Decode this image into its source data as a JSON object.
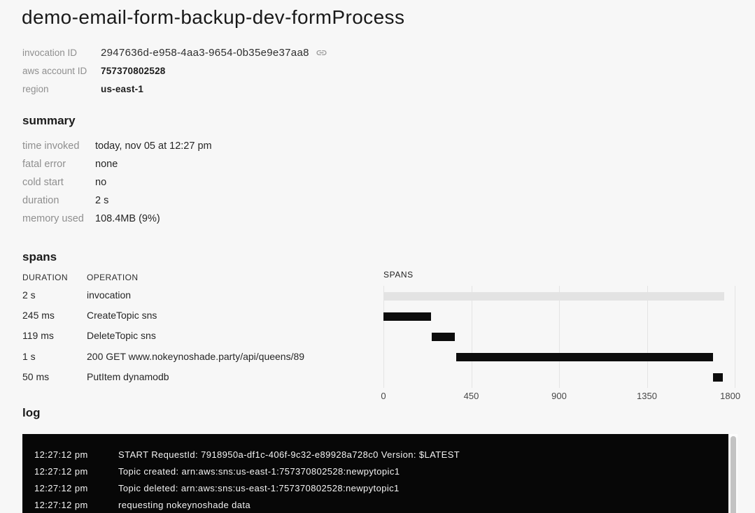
{
  "page": {
    "title": "demo-email-form-backup-dev-formProcess"
  },
  "meta": {
    "invocation_id": {
      "label": "invocation ID",
      "value": "2947636d-e958-4aa3-9654-0b35e9e37aa8"
    },
    "aws_account_id": {
      "label": "aws account ID",
      "value": "757370802528"
    },
    "region": {
      "label": "region",
      "value": "us-east-1"
    }
  },
  "summary": {
    "heading": "summary",
    "rows": [
      {
        "label": "time invoked",
        "value": "today, nov 05 at 12:27 pm"
      },
      {
        "label": "fatal error",
        "value": "none"
      },
      {
        "label": "cold start",
        "value": "no"
      },
      {
        "label": "duration",
        "value": "2 s"
      },
      {
        "label": "memory used",
        "value": "108.4MB (9%)"
      }
    ]
  },
  "spans": {
    "heading": "spans",
    "columns": [
      "DURATION",
      "OPERATION"
    ],
    "rows": [
      {
        "duration": "2 s",
        "operation": "invocation"
      },
      {
        "duration": "245 ms",
        "operation": "CreateTopic sns"
      },
      {
        "duration": "119 ms",
        "operation": "DeleteTopic sns"
      },
      {
        "duration": "1 s",
        "operation": "200 GET www.nokeynoshade.party/api/queens/89"
      },
      {
        "duration": "50 ms",
        "operation": "PutItem dynamodb"
      }
    ]
  },
  "chart_data": {
    "type": "gantt",
    "title": "SPANS",
    "unit": "ms",
    "xlim": [
      0,
      1800
    ],
    "x_ticks": [
      0,
      450,
      900,
      1350,
      1800
    ],
    "grid": true,
    "legend": false,
    "bars": [
      {
        "operation": "invocation",
        "start": 0,
        "end": 1745,
        "color": "#e3e3e3"
      },
      {
        "operation": "CreateTopic sns",
        "start": 0,
        "end": 245,
        "color": "#0d0d0d"
      },
      {
        "operation": "DeleteTopic sns",
        "start": 248,
        "end": 367,
        "color": "#0d0d0d"
      },
      {
        "operation": "200 GET www.nokeynoshade.party/api/queens/89",
        "start": 372,
        "end": 1688,
        "color": "#0d0d0d"
      },
      {
        "operation": "PutItem dynamodb",
        "start": 1688,
        "end": 1738,
        "color": "#0d0d0d"
      }
    ]
  },
  "log": {
    "heading": "log",
    "entries": [
      {
        "time": "12:27:12 pm",
        "message": "START RequestId: 7918950a-df1c-406f-9c32-e89928a728c0 Version: $LATEST"
      },
      {
        "time": "12:27:12 pm",
        "message": "Topic created: arn:aws:sns:us-east-1:757370802528:newpytopic1"
      },
      {
        "time": "12:27:12 pm",
        "message": "Topic deleted: arn:aws:sns:us-east-1:757370802528:newpytopic1"
      },
      {
        "time": "12:27:12 pm",
        "message": "requesting nokeynoshade data"
      }
    ]
  },
  "colors": {
    "page_bg": "#f7f7f7",
    "log_bg": "#070707",
    "bar_active": "#0d0d0d",
    "bar_parent": "#e3e3e3",
    "label_gray": "#8f8f8f",
    "scroll_thumb": "#c3c3c3"
  }
}
